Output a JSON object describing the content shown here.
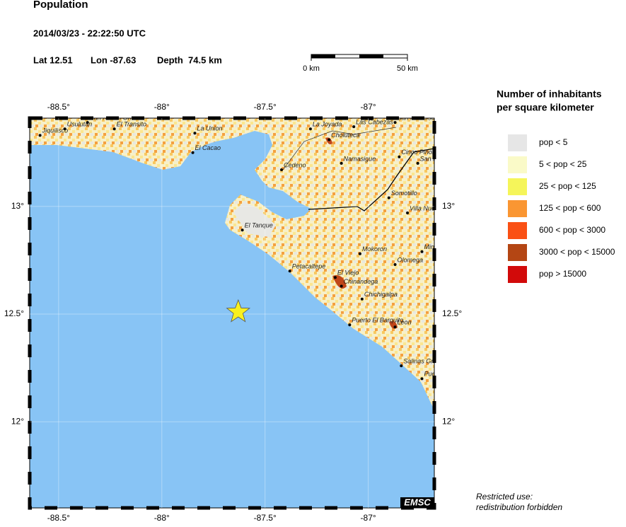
{
  "header": {
    "title": "Population",
    "datetime": "2014/03/23 - 22:22:50 UTC",
    "lat": {
      "value": 12.51,
      "label": "Lat 12.51"
    },
    "lon": {
      "value": -87.63,
      "label": "Lon -87.63"
    },
    "depth": "Depth  74.5 km"
  },
  "scale": {
    "start": "0 km",
    "end": "50 km"
  },
  "map": {
    "lonlim": [
      -88.64,
      -86.68
    ],
    "latlim": [
      11.6,
      13.41
    ],
    "lonticks": [
      {
        "value": -88.5,
        "label": "-88.5°"
      },
      {
        "value": -88,
        "label": "-88°"
      },
      {
        "value": -87.5,
        "label": "-87.5°"
      },
      {
        "value": -87,
        "label": "-87°"
      }
    ],
    "latticks": [
      {
        "value": 13,
        "label": "13°"
      },
      {
        "value": 12.5,
        "label": "12.5°"
      },
      {
        "value": 12,
        "label": "12°"
      }
    ],
    "cities": [
      {
        "name": "Jiquilisco",
        "lon": -88.59,
        "lat": 13.33
      },
      {
        "name": "San Rafael Oriente",
        "lon": -88.36,
        "lat": 13.39
      },
      {
        "name": "Usulutan",
        "lon": -88.47,
        "lat": 13.36
      },
      {
        "name": "El Transito",
        "lon": -88.23,
        "lat": 13.36
      },
      {
        "name": "La Union",
        "lon": -87.84,
        "lat": 13.34
      },
      {
        "name": "El Cacao",
        "lon": -87.85,
        "lat": 13.25
      },
      {
        "name": "La Joyada",
        "lon": -87.28,
        "lat": 13.36
      },
      {
        "name": "Las Cabezas",
        "lon": -87.07,
        "lat": 13.37
      },
      {
        "name": "San Francisco",
        "lon": -86.87,
        "lat": 13.39
      },
      {
        "name": "Choluteca",
        "lon": -87.19,
        "lat": 13.31
      },
      {
        "name": "Namasigue",
        "lon": -87.13,
        "lat": 13.2
      },
      {
        "name": "Cinco Pinos",
        "lon": -86.85,
        "lat": 13.23
      },
      {
        "name": "San Pedro",
        "lon": -86.76,
        "lat": 13.2
      },
      {
        "name": "Cedeno",
        "lon": -87.42,
        "lat": 13.17
      },
      {
        "name": "Somotillo",
        "lon": -86.9,
        "lat": 13.04
      },
      {
        "name": "Villa Nueva",
        "lon": -86.81,
        "lat": 12.97
      },
      {
        "name": "El Tanque",
        "lon": -87.61,
        "lat": 12.89
      },
      {
        "name": "Mokoron",
        "lon": -87.04,
        "lat": 12.78
      },
      {
        "name": "Mina El Limon",
        "lon": -86.74,
        "lat": 12.79
      },
      {
        "name": "Olomega",
        "lon": -86.87,
        "lat": 12.73
      },
      {
        "name": "Petacaltepe",
        "lon": -87.38,
        "lat": 12.7
      },
      {
        "name": "El Viejo",
        "lon": -87.16,
        "lat": 12.67
      },
      {
        "name": "Chinandega",
        "lon": -87.13,
        "lat": 12.63
      },
      {
        "name": "Chichigalpa",
        "lon": -87.03,
        "lat": 12.57
      },
      {
        "name": "Puerto El Barquito",
        "lon": -87.09,
        "lat": 12.45
      },
      {
        "name": "Leon",
        "lon": -86.87,
        "lat": 12.44
      },
      {
        "name": "Salinas Grandes",
        "lon": -86.84,
        "lat": 12.26
      },
      {
        "name": "Puerto Sandino",
        "lon": -86.74,
        "lat": 12.2
      }
    ],
    "credit": "EMSC"
  },
  "legend": {
    "title": [
      "Number of inhabitants",
      "per square kilometer"
    ],
    "items": [
      {
        "label": "pop < 5",
        "color": "#e6e6e6"
      },
      {
        "label": "5 < pop < 25",
        "color": "#fafac8"
      },
      {
        "label": "25 < pop < 125",
        "color": "#f5f55a"
      },
      {
        "label": "125 < pop < 600",
        "color": "#fa9632"
      },
      {
        "label": "600 < pop < 3000",
        "color": "#fa5014"
      },
      {
        "label": "3000 < pop < 15000",
        "color": "#b44614"
      },
      {
        "label": "pop > 15000",
        "color": "#d20a0a"
      }
    ]
  },
  "footer": [
    "Restricted use:",
    "redistribution forbidden"
  ]
}
